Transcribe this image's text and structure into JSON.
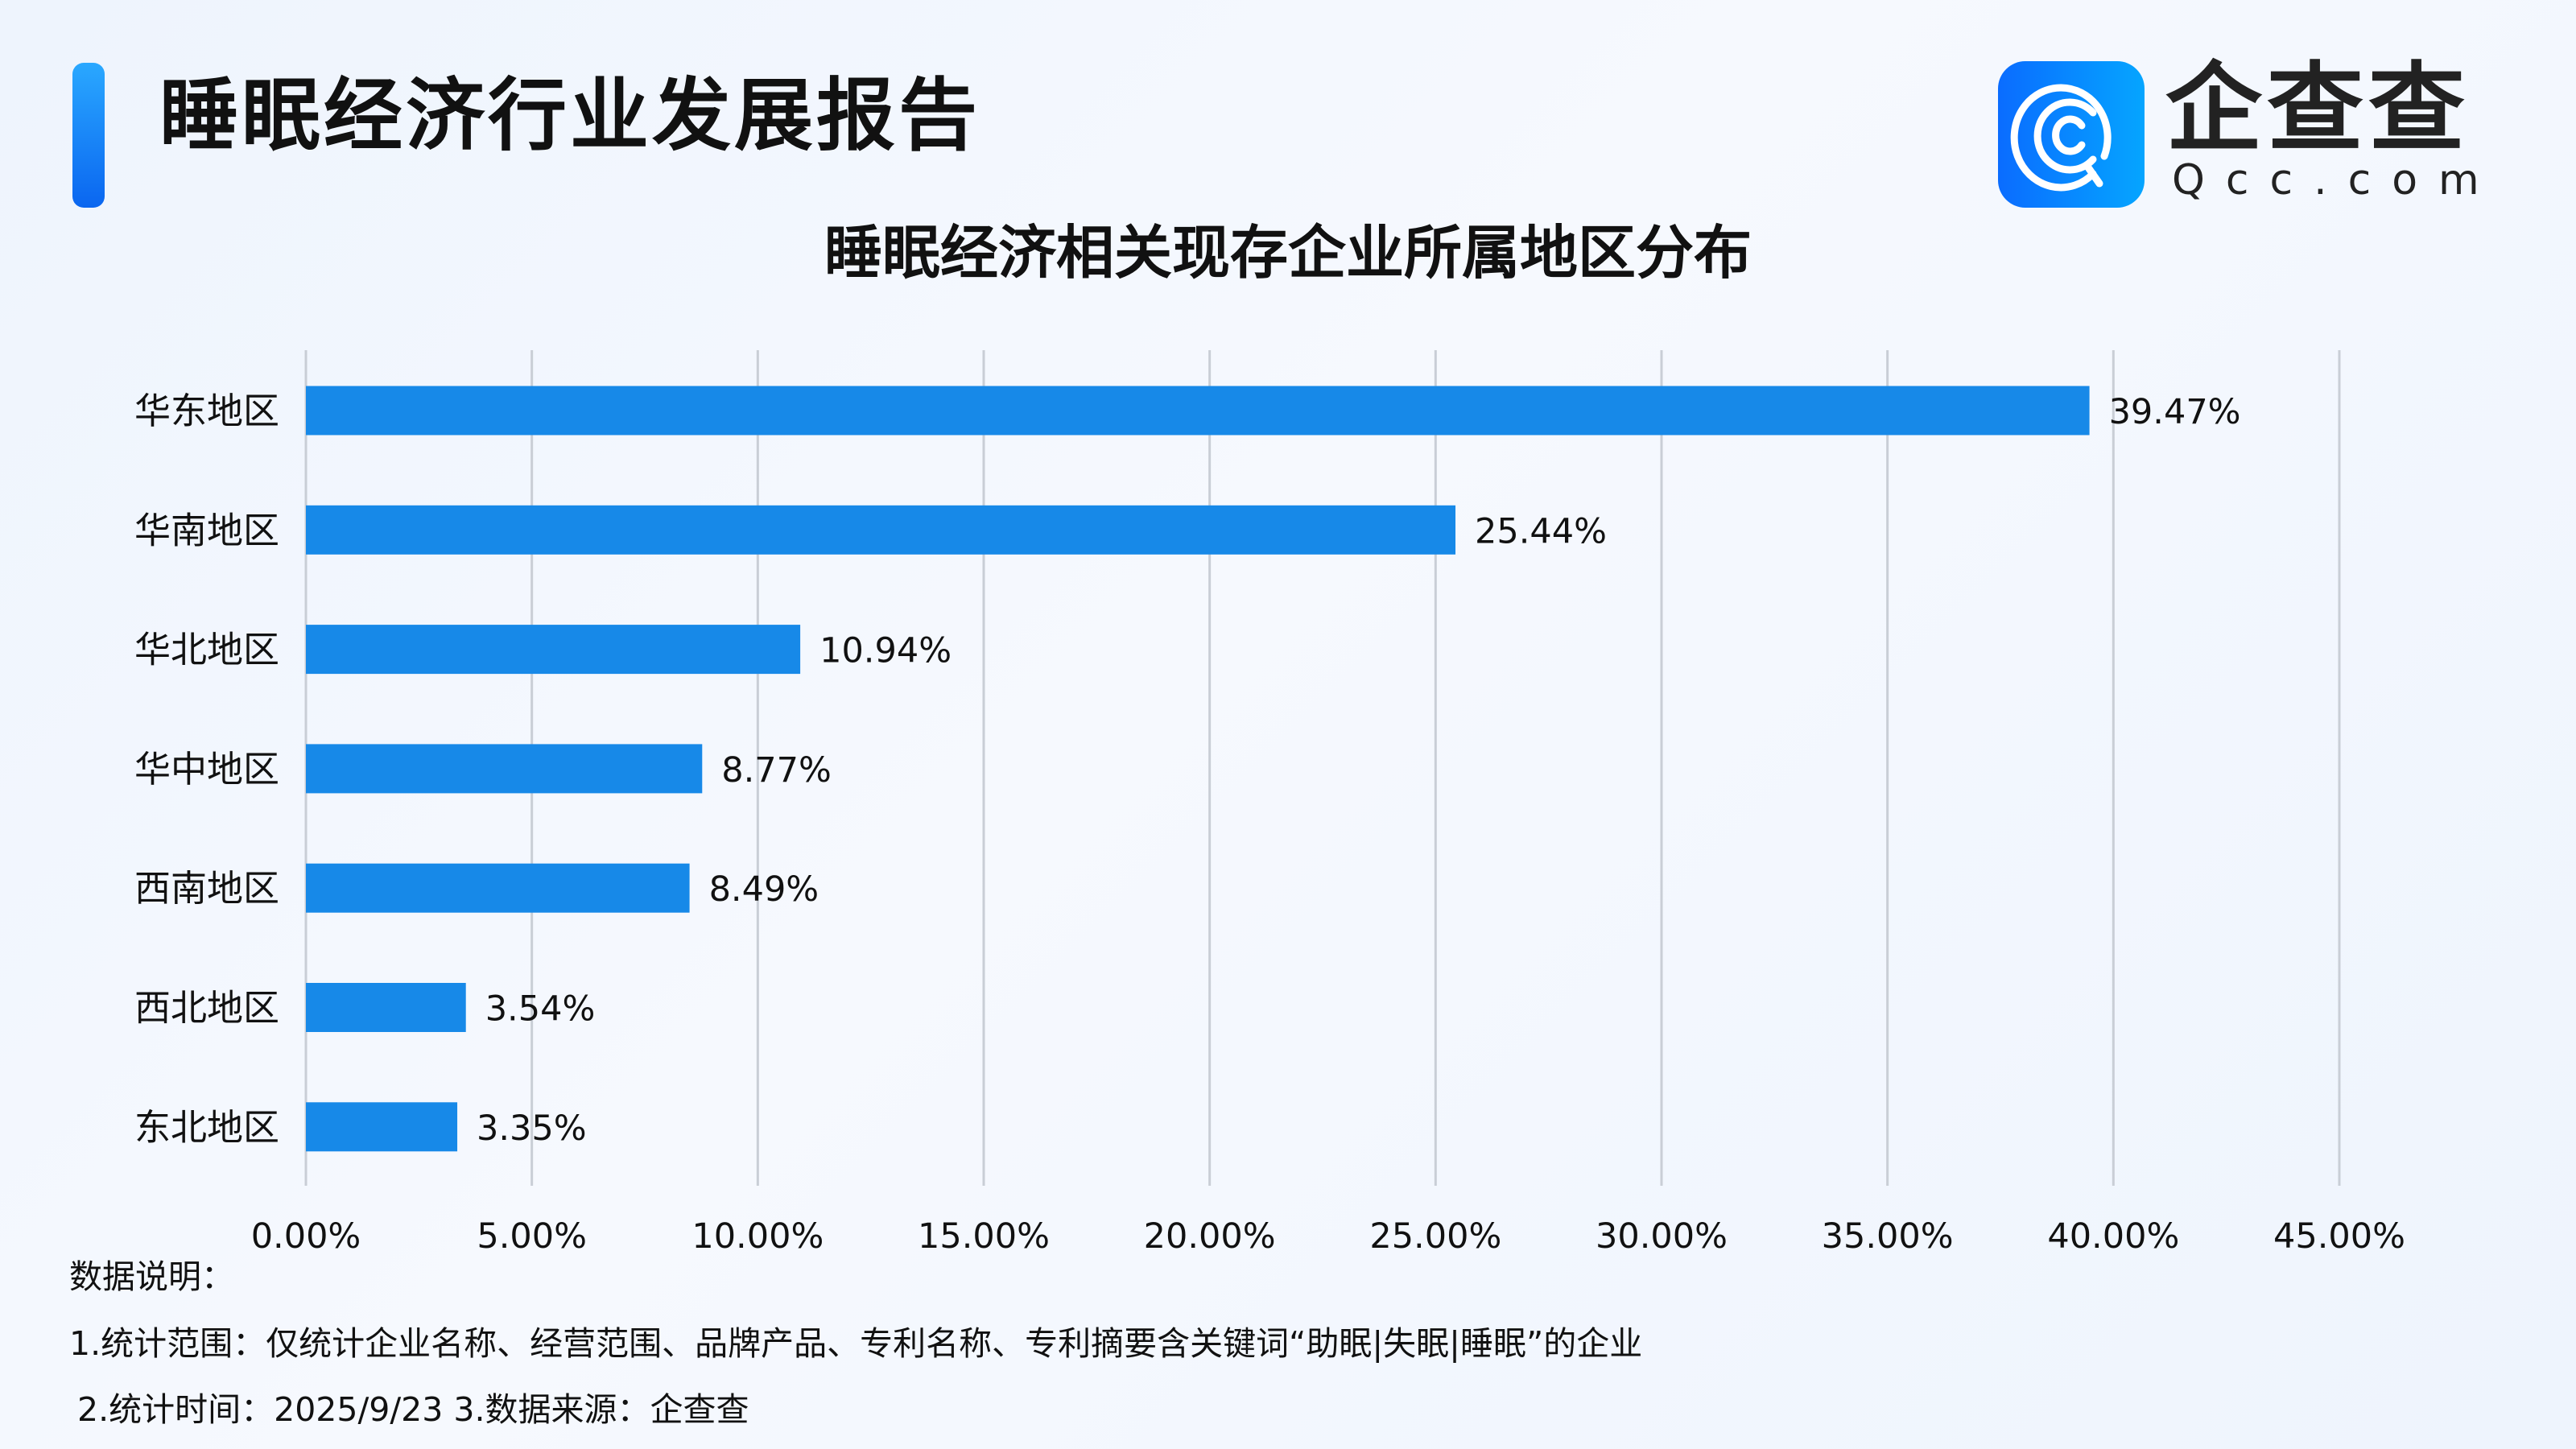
{
  "header": {
    "title": "睡眠经济行业发展报告"
  },
  "logo": {
    "name_cn": "企查查",
    "name_en": "Qcc.com",
    "icon": "qcc-logo-icon"
  },
  "chart_data": {
    "type": "bar",
    "orientation": "horizontal",
    "title": "睡眠经济相关现存企业所属地区分布",
    "categories": [
      "华东地区",
      "华南地区",
      "华北地区",
      "华中地区",
      "西南地区",
      "西北地区",
      "东北地区"
    ],
    "values": [
      39.47,
      25.44,
      10.94,
      8.77,
      8.49,
      3.54,
      3.35
    ],
    "data_labels": [
      "39.47%",
      "25.44%",
      "10.94%",
      "8.77%",
      "8.49%",
      "3.54%",
      "3.35%"
    ],
    "xlim": [
      0,
      45
    ],
    "x_ticks": [
      0,
      5,
      10,
      15,
      20,
      25,
      30,
      35,
      40,
      45
    ],
    "x_tick_labels": [
      "0.00%",
      "5.00%",
      "10.00%",
      "15.00%",
      "20.00%",
      "25.00%",
      "30.00%",
      "35.00%",
      "40.00%",
      "45.00%"
    ],
    "xlabel": "",
    "ylabel": "",
    "grid": "vertical",
    "bar_color": "#1789e8"
  },
  "notes": {
    "heading": "数据说明：",
    "line1": "1.统计范围：仅统计企业名称、经营范围、品牌产品、专利名称、专利摘要含关键词“助眠|失眠|睡眠”的企业",
    "line2": "2.统计时间：2025/9/23  3.数据来源：企查查"
  }
}
